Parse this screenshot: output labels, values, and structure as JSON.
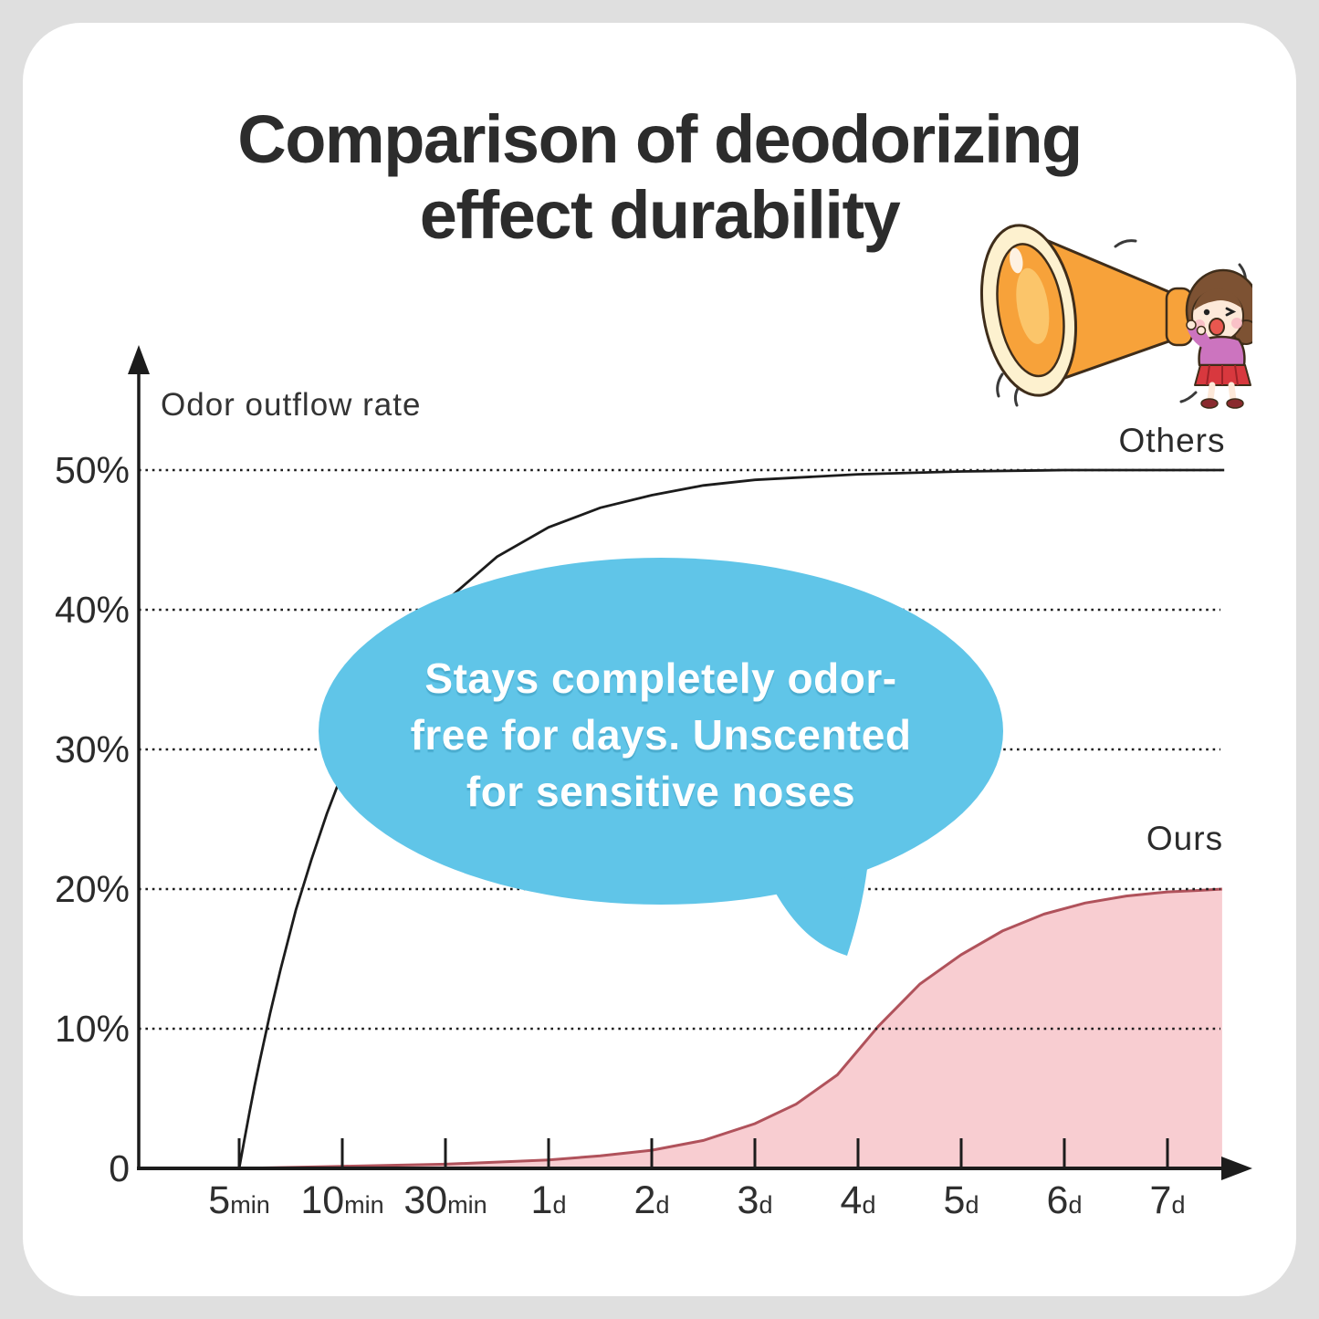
{
  "page": {
    "background_color": "#dfdfdf",
    "card_color": "#ffffff"
  },
  "title": {
    "line1": "Comparison of deodorizing",
    "line2": "effect durability"
  },
  "bubble": {
    "color": "#60c5e8",
    "lines": [
      "Stays completely odor-",
      "free for days. Unscented",
      "for sensitive noses"
    ]
  },
  "colors": {
    "ink": "#2c2c2c",
    "axis": "#1c1c1c",
    "others_line": "#1c1c1c",
    "ours_line": "#b0525b",
    "ours_fill": "#f8cdd1",
    "bubble_blue": "#60c5e8"
  },
  "chart_data": {
    "type": "area",
    "title": "Comparison of deodorizing effect durability",
    "ylabel": "Odor outflow rate",
    "xlabel": "",
    "x_unit": "tick index (0 = 5min ... 9 = 7d)",
    "x_categories": [
      "5min",
      "10min",
      "30min",
      "1d",
      "2d",
      "3d",
      "4d",
      "5d",
      "6d",
      "7d"
    ],
    "x_ticks": [
      {
        "num": "5",
        "unit": "min"
      },
      {
        "num": "10",
        "unit": "min"
      },
      {
        "num": "30",
        "unit": "min"
      },
      {
        "num": "1",
        "unit": "d"
      },
      {
        "num": "2",
        "unit": "d"
      },
      {
        "num": "3",
        "unit": "d"
      },
      {
        "num": "4",
        "unit": "d"
      },
      {
        "num": "5",
        "unit": "d"
      },
      {
        "num": "6",
        "unit": "d"
      },
      {
        "num": "7",
        "unit": "d"
      }
    ],
    "y_ticks": [
      {
        "label": "50%",
        "pct": 50
      },
      {
        "label": "40%",
        "pct": 40
      },
      {
        "label": "30%",
        "pct": 30
      },
      {
        "label": "20%",
        "pct": 20
      },
      {
        "label": "10%",
        "pct": 10
      },
      {
        "label": "0",
        "pct": 0
      }
    ],
    "grid_pcts": [
      10,
      20,
      30,
      40,
      50
    ],
    "ylim": [
      0,
      58
    ],
    "grid": "horizontal dotted lines at each 10%",
    "legend_position": "labels at right end of each curve",
    "series": [
      {
        "name": "Others",
        "type": "line",
        "color": "#1c1c1c",
        "summary": "rises steeply from 0% at 5min to ~28% by 10min, ~40% by 30min, asymptotes at 50% by 7d",
        "points_pct": [
          [
            0,
            0
          ],
          [
            0.05,
            2
          ],
          [
            0.1,
            4
          ],
          [
            0.15,
            5.9
          ],
          [
            0.2,
            7.7
          ],
          [
            0.3,
            11.1
          ],
          [
            0.4,
            14.2
          ],
          [
            0.55,
            18.5
          ],
          [
            0.7,
            22.1
          ],
          [
            0.85,
            25.4
          ],
          [
            1,
            28.3
          ],
          [
            1.25,
            32.4
          ],
          [
            1.5,
            35.7
          ],
          [
            2,
            40.6
          ],
          [
            2.5,
            43.8
          ],
          [
            3,
            45.9
          ],
          [
            3.5,
            47.3
          ],
          [
            4,
            48.2
          ],
          [
            4.5,
            48.9
          ],
          [
            5,
            49.3
          ],
          [
            6,
            49.7
          ],
          [
            7,
            49.9
          ],
          [
            8,
            50
          ],
          [
            9,
            50
          ],
          [
            9.55,
            50
          ]
        ]
      },
      {
        "name": "Ours",
        "type": "area",
        "color": "#b0525b",
        "fill": "#f8cdd1",
        "summary": "stays near 0% through 1-2 days, sigmoid rise crossing 10% just after 4d, levels off at 20% by 7d",
        "points_pct": [
          [
            0,
            0
          ],
          [
            1,
            0.15
          ],
          [
            2,
            0.3
          ],
          [
            3,
            0.6
          ],
          [
            3.5,
            0.9
          ],
          [
            4,
            1.3
          ],
          [
            4.5,
            2
          ],
          [
            5,
            3.2
          ],
          [
            5.4,
            4.6
          ],
          [
            5.8,
            6.7
          ],
          [
            6.2,
            10.2
          ],
          [
            6.6,
            13.2
          ],
          [
            7,
            15.3
          ],
          [
            7.4,
            17
          ],
          [
            7.8,
            18.2
          ],
          [
            8.2,
            19
          ],
          [
            8.6,
            19.5
          ],
          [
            9,
            19.8
          ],
          [
            9.3,
            19.9
          ],
          [
            9.53,
            20
          ]
        ]
      }
    ],
    "annotation": "Stays completely odor-free for days. Unscented for sensitive noses"
  }
}
